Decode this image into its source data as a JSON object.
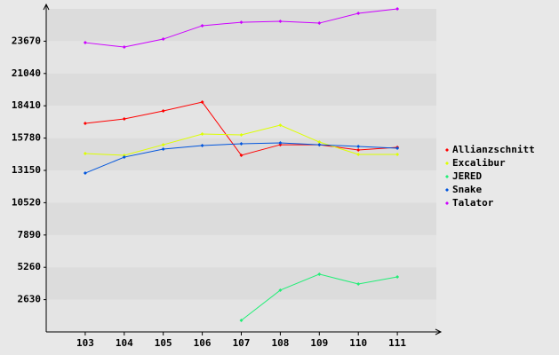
{
  "chart_data": {
    "type": "line",
    "categories": [
      "103",
      "104",
      "105",
      "106",
      "107",
      "108",
      "109",
      "110",
      "111"
    ],
    "series": [
      {
        "name": "Allianzschnitt",
        "color": "#ff0000",
        "values": [
          16980,
          17340,
          17990,
          18710,
          14380,
          15240,
          15240,
          14810,
          15030
        ]
      },
      {
        "name": "Excalibur",
        "color": "#ddff00",
        "values": [
          14520,
          14380,
          15240,
          16110,
          16040,
          16830,
          15460,
          14450,
          14450
        ]
      },
      {
        "name": "JERED",
        "color": "#22ee77",
        "values": [
          null,
          null,
          null,
          null,
          940,
          3400,
          4700,
          3900,
          4480
        ]
      },
      {
        "name": "Snake",
        "color": "#0055dd",
        "values": [
          12930,
          14230,
          14880,
          15170,
          15320,
          15390,
          15240,
          15100,
          14960
        ]
      },
      {
        "name": "Talator",
        "color": "#cc00ff",
        "values": [
          23550,
          23190,
          23840,
          24930,
          25210,
          25290,
          25140,
          25940,
          26300
        ]
      }
    ],
    "ylim": [
      0,
      26300
    ],
    "yticks": [
      2630,
      5260,
      7890,
      10520,
      13150,
      15780,
      18410,
      21040,
      23670
    ],
    "grid": true,
    "legend": "right"
  }
}
